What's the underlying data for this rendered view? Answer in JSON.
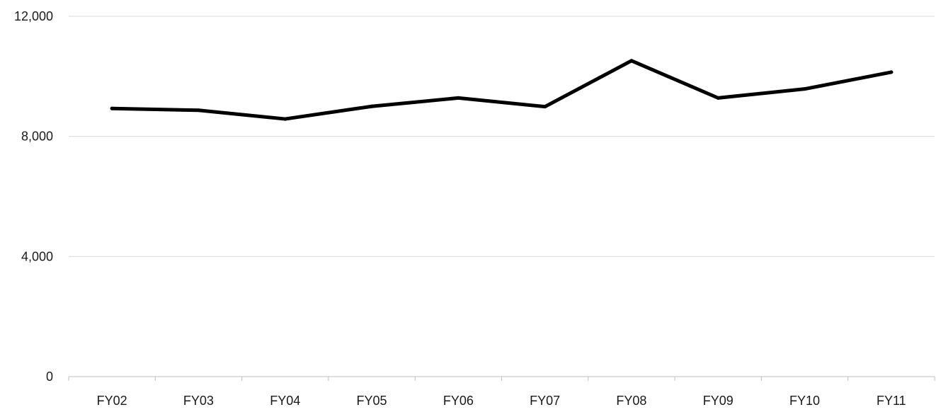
{
  "chart_data": {
    "type": "line",
    "title": "",
    "xlabel": "",
    "ylabel": "",
    "categories": [
      "FY02",
      "FY03",
      "FY04",
      "FY05",
      "FY06",
      "FY07",
      "FY08",
      "FY09",
      "FY10",
      "FY11"
    ],
    "series": [
      {
        "values": [
          8930,
          8870,
          8580,
          9000,
          9280,
          8990,
          10520,
          9280,
          9580,
          10140
        ],
        "color": "#000000"
      }
    ],
    "yticks": [
      0,
      4000,
      8000,
      12000
    ],
    "ytick_labels": [
      "0",
      "4,000",
      "8,000",
      "12,000"
    ],
    "ylim": [
      0,
      12000
    ],
    "grid": true,
    "legend": "none"
  }
}
